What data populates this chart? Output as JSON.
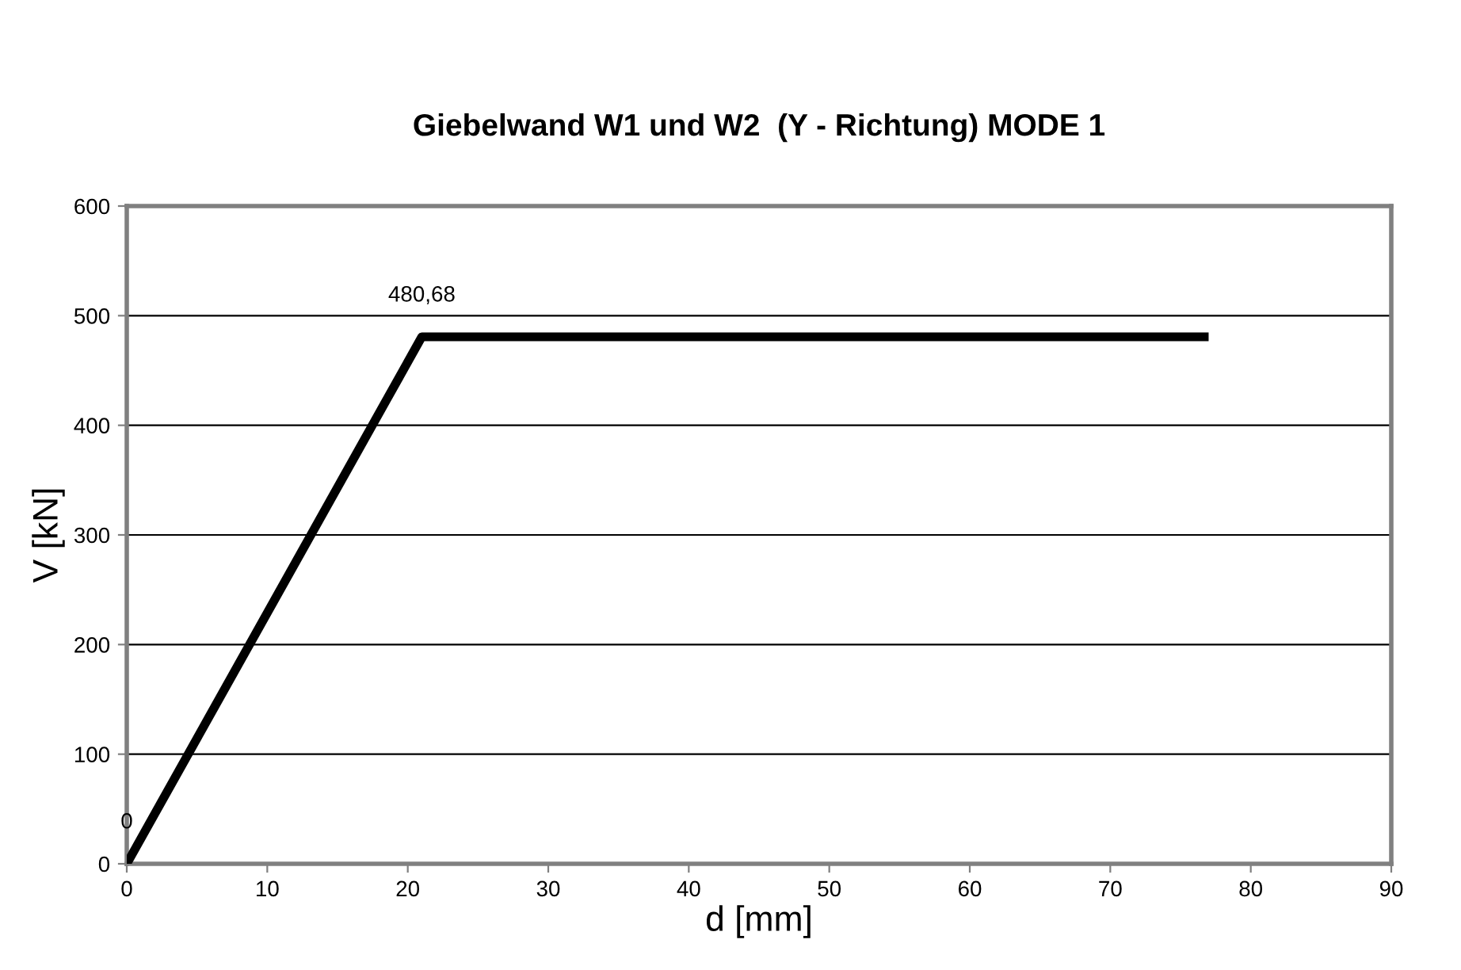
{
  "chart_data": {
    "type": "line",
    "title": "Giebelwand W1 und W2  (Y - Richtung) MODE 1",
    "xlabel": "d [mm]",
    "ylabel": "V [kN]",
    "x": [
      0,
      21,
      77
    ],
    "series": [
      {
        "color": "#000000",
        "values": [
          0,
          480.68,
          480.68
        ],
        "value_labels": [
          "0",
          "480,68",
          null
        ]
      }
    ],
    "xlim": [
      0,
      90
    ],
    "xticks": [
      0,
      10,
      20,
      30,
      40,
      50,
      60,
      70,
      80,
      90
    ],
    "ylim": [
      0,
      600
    ],
    "yticks": [
      0,
      100,
      200,
      300,
      400,
      500,
      600
    ],
    "grid": "y",
    "marker": "none",
    "line_style": "solid"
  }
}
